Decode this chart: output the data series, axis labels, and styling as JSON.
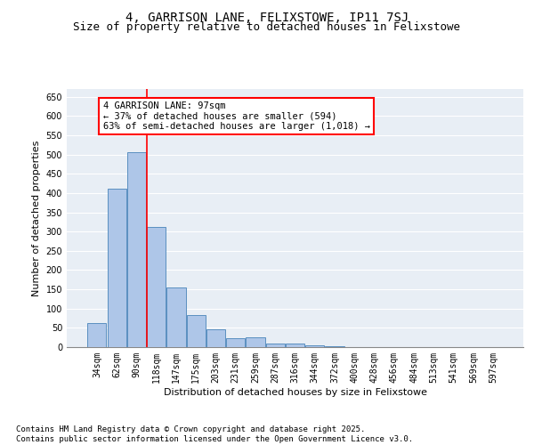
{
  "title": "4, GARRISON LANE, FELIXSTOWE, IP11 7SJ",
  "subtitle": "Size of property relative to detached houses in Felixstowe",
  "xlabel": "Distribution of detached houses by size in Felixstowe",
  "ylabel": "Number of detached properties",
  "categories": [
    "34sqm",
    "62sqm",
    "90sqm",
    "118sqm",
    "147sqm",
    "175sqm",
    "203sqm",
    "231sqm",
    "259sqm",
    "287sqm",
    "316sqm",
    "344sqm",
    "372sqm",
    "400sqm",
    "428sqm",
    "456sqm",
    "484sqm",
    "513sqm",
    "541sqm",
    "569sqm",
    "597sqm"
  ],
  "values": [
    62,
    412,
    507,
    313,
    155,
    83,
    46,
    23,
    25,
    10,
    10,
    5,
    2,
    1,
    0,
    0,
    0,
    0,
    0,
    0,
    0
  ],
  "bar_color": "#aec6e8",
  "bar_edge_color": "#5a8fc0",
  "vline_color": "red",
  "annotation_text": "4 GARRISON LANE: 97sqm\n← 37% of detached houses are smaller (594)\n63% of semi-detached houses are larger (1,018) →",
  "annotation_box_color": "white",
  "annotation_box_edge": "red",
  "ylim": [
    0,
    670
  ],
  "yticks": [
    0,
    50,
    100,
    150,
    200,
    250,
    300,
    350,
    400,
    450,
    500,
    550,
    600,
    650
  ],
  "background_color": "#e8eef5",
  "footer_text": "Contains HM Land Registry data © Crown copyright and database right 2025.\nContains public sector information licensed under the Open Government Licence v3.0.",
  "title_fontsize": 10,
  "subtitle_fontsize": 9,
  "axis_label_fontsize": 8,
  "tick_fontsize": 7,
  "footer_fontsize": 6.5,
  "annot_fontsize": 7.5
}
